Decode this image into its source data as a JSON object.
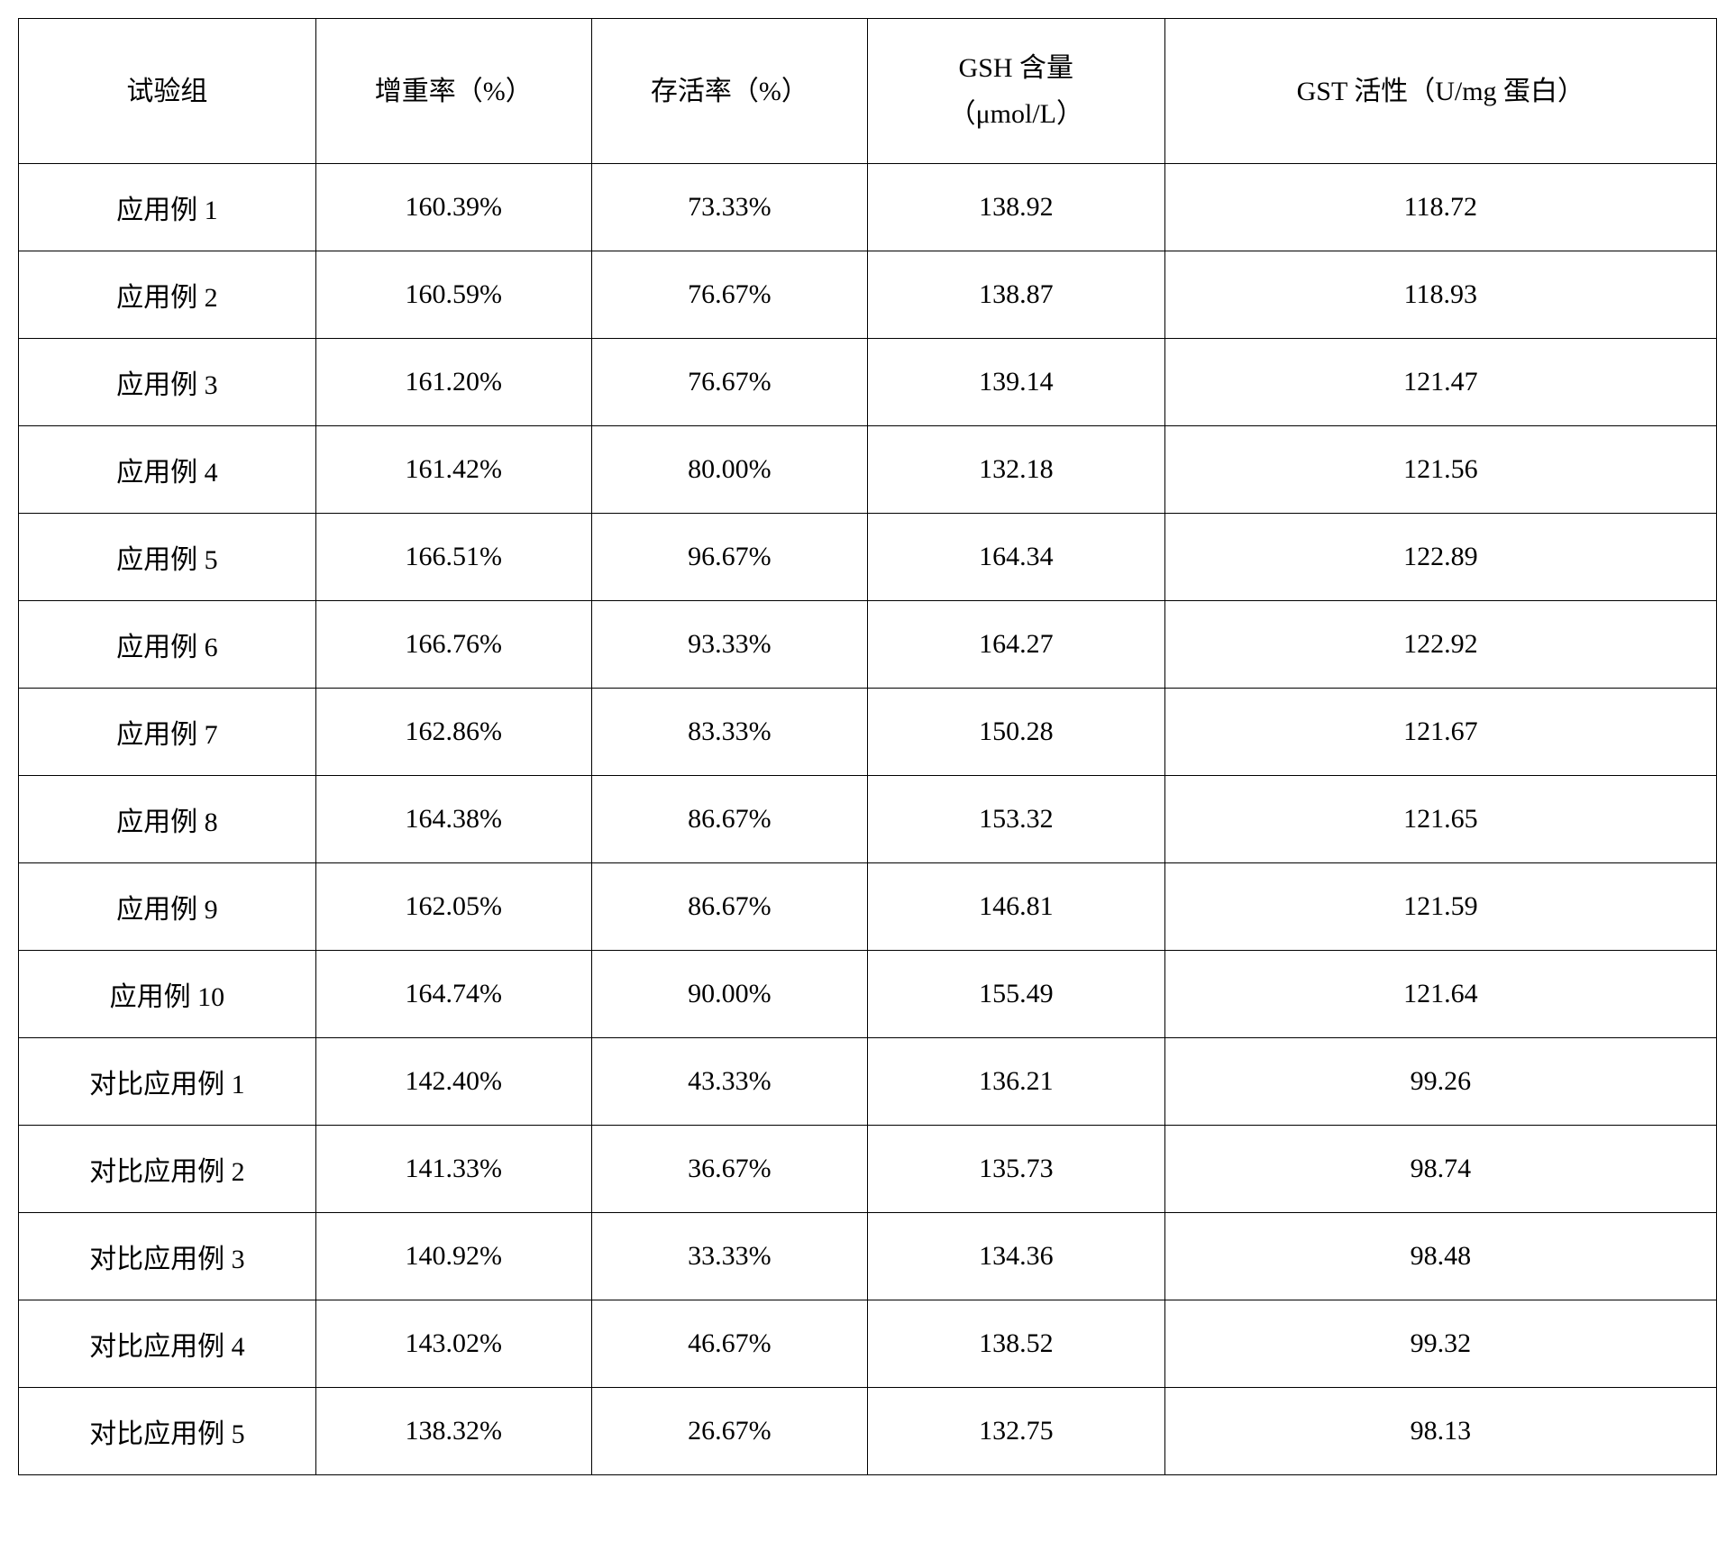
{
  "table": {
    "columns": [
      {
        "label": "试验组",
        "width": 14
      },
      {
        "label": "增重率（%）",
        "width": 13
      },
      {
        "label": "存活率（%）",
        "width": 13
      },
      {
        "label_line1": "GSH 含量",
        "label_line2": "（μmol/L）",
        "width": 14
      },
      {
        "label": "GST 活性（U/mg 蛋白）",
        "width": 26
      }
    ],
    "rows": [
      [
        "应用例 1",
        "160.39%",
        "73.33%",
        "138.92",
        "118.72"
      ],
      [
        "应用例 2",
        "160.59%",
        "76.67%",
        "138.87",
        "118.93"
      ],
      [
        "应用例 3",
        "161.20%",
        "76.67%",
        "139.14",
        "121.47"
      ],
      [
        "应用例 4",
        "161.42%",
        "80.00%",
        "132.18",
        "121.56"
      ],
      [
        "应用例 5",
        "166.51%",
        "96.67%",
        "164.34",
        "122.89"
      ],
      [
        "应用例 6",
        "166.76%",
        "93.33%",
        "164.27",
        "122.92"
      ],
      [
        "应用例 7",
        "162.86%",
        "83.33%",
        "150.28",
        "121.67"
      ],
      [
        "应用例 8",
        "164.38%",
        "86.67%",
        "153.32",
        "121.65"
      ],
      [
        "应用例 9",
        "162.05%",
        "86.67%",
        "146.81",
        "121.59"
      ],
      [
        "应用例 10",
        "164.74%",
        "90.00%",
        "155.49",
        "121.64"
      ],
      [
        "对比应用例 1",
        "142.40%",
        "43.33%",
        "136.21",
        "99.26"
      ],
      [
        "对比应用例 2",
        "141.33%",
        "36.67%",
        "135.73",
        "98.74"
      ],
      [
        "对比应用例 3",
        "140.92%",
        "33.33%",
        "134.36",
        "98.48"
      ],
      [
        "对比应用例 4",
        "143.02%",
        "46.67%",
        "138.52",
        "99.32"
      ],
      [
        "对比应用例 5",
        "138.32%",
        "26.67%",
        "132.75",
        "98.13"
      ]
    ],
    "border_color": "#000000",
    "background_color": "#ffffff",
    "text_color": "#000000",
    "font_size": 30,
    "header_row_height": 160,
    "data_row_height": 96
  }
}
